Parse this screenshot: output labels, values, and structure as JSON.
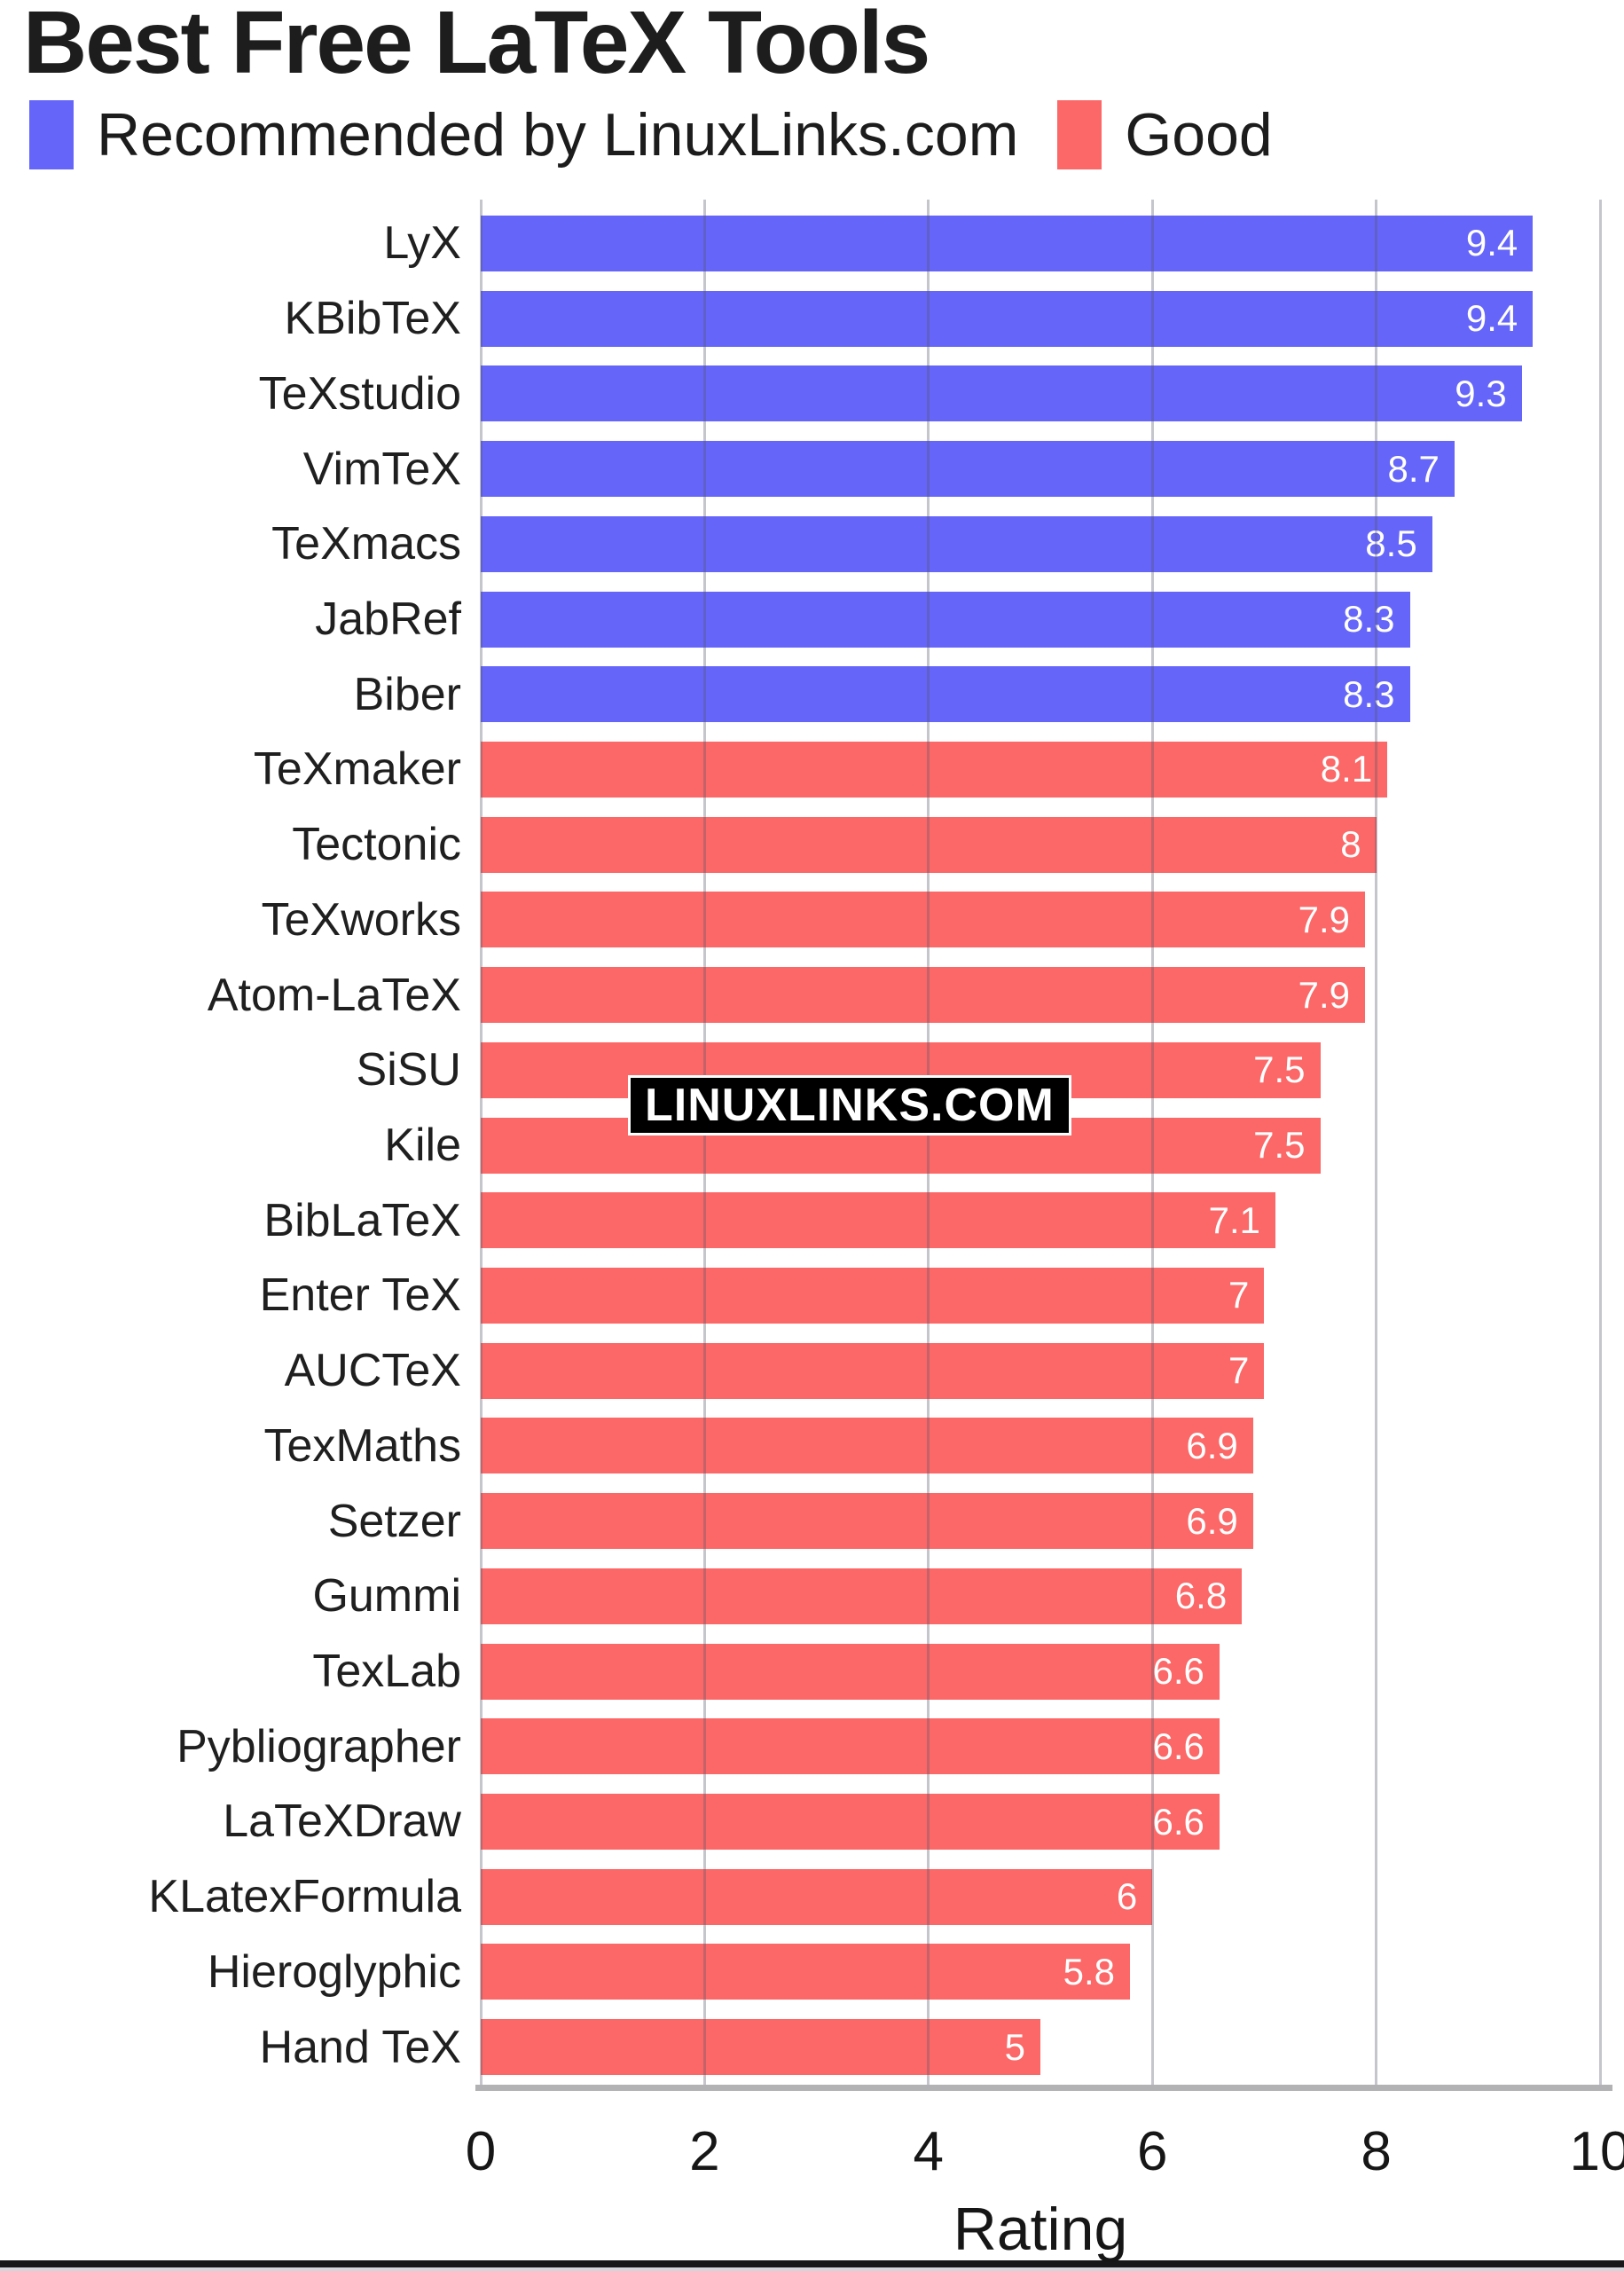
{
  "title": "Best Free LaTeX Tools",
  "legend": {
    "items": [
      {
        "label": "Recommended by LinuxLinks.com",
        "color": "#6565fa"
      },
      {
        "label": "Good",
        "color": "#fc6767"
      }
    ]
  },
  "watermark": {
    "text": "LINUXLINKS.COM",
    "bg": "#000000",
    "fg": "#ffffff"
  },
  "colors": {
    "recommended": "#6565fa",
    "good": "#fc6767",
    "grid": "rgba(90,90,110,0.35)",
    "axis_line": "#b2b2b4",
    "text": "#1a1a1a",
    "value_label": "#ffffff",
    "background": "#ffffff"
  },
  "chart_data": {
    "type": "bar",
    "orientation": "horizontal",
    "title": "Best Free LaTeX Tools",
    "xlabel": "Rating",
    "ylabel": "",
    "xlim": [
      0,
      10
    ],
    "xticks": [
      0,
      2,
      4,
      6,
      8,
      10
    ],
    "xtick_labels": [
      "0",
      "2",
      "4",
      "6",
      "8",
      "10"
    ],
    "grid": true,
    "legend_position": "top-left",
    "series": [
      {
        "name": "Recommended by LinuxLinks.com",
        "color": "#6565fa"
      },
      {
        "name": "Good",
        "color": "#fc6767"
      }
    ],
    "bars": [
      {
        "label": "LyX",
        "value": 9.4,
        "display": "9.4",
        "series": 0
      },
      {
        "label": "KBibTeX",
        "value": 9.4,
        "display": "9.4",
        "series": 0
      },
      {
        "label": "TeXstudio",
        "value": 9.3,
        "display": "9.3",
        "series": 0
      },
      {
        "label": "VimTeX",
        "value": 8.7,
        "display": "8.7",
        "series": 0
      },
      {
        "label": "TeXmacs",
        "value": 8.5,
        "display": "8.5",
        "series": 0
      },
      {
        "label": "JabRef",
        "value": 8.3,
        "display": "8.3",
        "series": 0
      },
      {
        "label": "Biber",
        "value": 8.3,
        "display": "8.3",
        "series": 0
      },
      {
        "label": "TeXmaker",
        "value": 8.1,
        "display": "8.1",
        "series": 1
      },
      {
        "label": "Tectonic",
        "value": 8,
        "display": "8",
        "series": 1
      },
      {
        "label": "TeXworks",
        "value": 7.9,
        "display": "7.9",
        "series": 1
      },
      {
        "label": "Atom-LaTeX",
        "value": 7.9,
        "display": "7.9",
        "series": 1
      },
      {
        "label": "SiSU",
        "value": 7.5,
        "display": "7.5",
        "series": 1
      },
      {
        "label": "Kile",
        "value": 7.5,
        "display": "7.5",
        "series": 1
      },
      {
        "label": "BibLaTeX",
        "value": 7.1,
        "display": "7.1",
        "series": 1
      },
      {
        "label": "Enter TeX",
        "value": 7,
        "display": "7",
        "series": 1
      },
      {
        "label": "AUCTeX",
        "value": 7,
        "display": "7",
        "series": 1
      },
      {
        "label": "TexMaths",
        "value": 6.9,
        "display": "6.9",
        "series": 1
      },
      {
        "label": "Setzer",
        "value": 6.9,
        "display": "6.9",
        "series": 1
      },
      {
        "label": "Gummi",
        "value": 6.8,
        "display": "6.8",
        "series": 1
      },
      {
        "label": "TexLab",
        "value": 6.6,
        "display": "6.6",
        "series": 1
      },
      {
        "label": "Pybliographer",
        "value": 6.6,
        "display": "6.6",
        "series": 1
      },
      {
        "label": "LaTeXDraw",
        "value": 6.6,
        "display": "6.6",
        "series": 1
      },
      {
        "label": "KLatexFormula",
        "value": 6,
        "display": "6",
        "series": 1
      },
      {
        "label": "Hieroglyphic",
        "value": 5.8,
        "display": "5.8",
        "series": 1
      },
      {
        "label": "Hand TeX",
        "value": 5,
        "display": "5",
        "series": 1
      }
    ]
  }
}
